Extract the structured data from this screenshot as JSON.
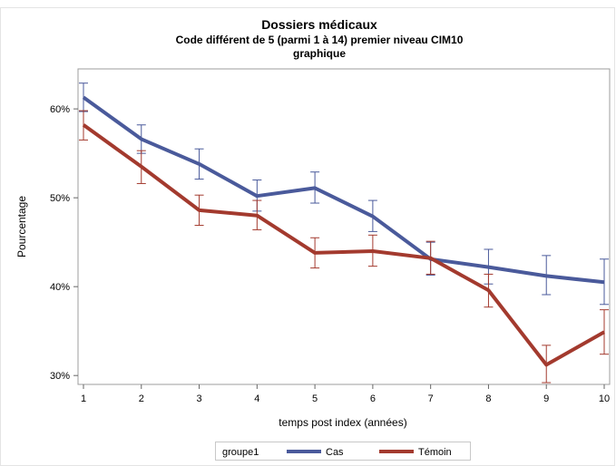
{
  "chart_data": {
    "type": "line",
    "title": "Dossiers médicaux",
    "subtitle": "Code différent de 5 (parmi 1 à 14) premier niveau CIM10",
    "subtitle2": "graphique",
    "xlabel": "temps post index (années)",
    "ylabel": "Pourcentage",
    "x": [
      1,
      2,
      3,
      4,
      5,
      6,
      7,
      8,
      9,
      10
    ],
    "x_tick_labels": [
      "1",
      "2",
      "3",
      "4",
      "5",
      "6",
      "7",
      "8",
      "9",
      "10"
    ],
    "xlim": [
      1,
      10
    ],
    "ylim": [
      29,
      64.5
    ],
    "y_ticks": [
      30,
      40,
      50,
      60
    ],
    "y_tick_labels": [
      "30%",
      "40%",
      "50%",
      "60%"
    ],
    "grid": false,
    "legend": {
      "title": "groupe1",
      "position": "bottom"
    },
    "series": [
      {
        "name": "Cas",
        "color": "#4a5a9b",
        "values": [
          61.3,
          56.6,
          53.8,
          50.2,
          51.1,
          47.9,
          43.1,
          42.2,
          41.2,
          40.5
        ],
        "lower": [
          59.7,
          55.0,
          52.1,
          48.5,
          49.4,
          46.2,
          41.3,
          40.3,
          39.1,
          38.0
        ],
        "upper": [
          62.9,
          58.2,
          55.5,
          52.0,
          52.9,
          49.7,
          45.0,
          44.2,
          43.5,
          43.1
        ]
      },
      {
        "name": "Témoin",
        "color": "#a33a2e",
        "values": [
          58.2,
          53.5,
          48.6,
          48.0,
          43.8,
          44.0,
          43.2,
          39.6,
          31.2,
          34.9
        ],
        "lower": [
          56.5,
          51.6,
          46.9,
          46.4,
          42.1,
          42.3,
          41.4,
          37.7,
          29.2,
          32.4
        ],
        "upper": [
          59.8,
          55.3,
          50.3,
          49.7,
          45.5,
          45.8,
          45.1,
          41.4,
          33.4,
          37.4
        ]
      }
    ]
  }
}
